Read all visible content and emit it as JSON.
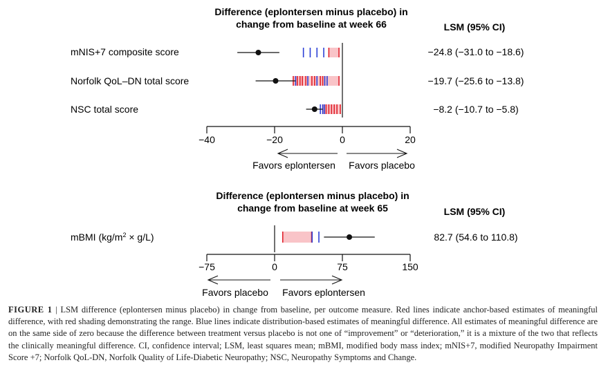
{
  "chart_data": [
    {
      "type": "forest",
      "title_line1": "Difference (eplontersen minus placebo) in",
      "title_line2": "change from baseline at week 66",
      "ci_header": "LSM (95% CI)",
      "xlim": [
        -40,
        20
      ],
      "ticks": [
        "−40",
        "−20",
        "0",
        "20"
      ],
      "tick_values": [
        -40,
        -20,
        0,
        20
      ],
      "direction_labels": {
        "left": "Favors eplontersen",
        "right": "Favors placebo"
      },
      "rows": [
        {
          "label": "mNIS+7 composite score",
          "lsm": -24.8,
          "ci_low": -31.0,
          "ci_high": -18.6,
          "ci_text": "−24.8 (−31.0 to −18.6)",
          "red_range": [
            -4,
            -1
          ],
          "red_lines": [
            -4,
            -1
          ],
          "blue_lines": [
            -11.5,
            -9.5,
            -7.5,
            -5.5
          ]
        },
        {
          "label": "Norfolk QoL–DN total score",
          "lsm": -19.7,
          "ci_low": -25.6,
          "ci_high": -13.8,
          "ci_text": "−19.7 (−25.6 to −13.8)",
          "red_range": [
            -14.5,
            -1
          ],
          "red_lines": [
            -14.5,
            -13.3,
            -12.5,
            -11.8,
            -10.8,
            -9.0,
            -8.2,
            -6.5,
            -5.8,
            -1
          ],
          "blue_lines": [
            -13.8,
            -10.2,
            -7.5,
            -5.2,
            -4.5
          ]
        },
        {
          "label": "NSC total score",
          "lsm": -8.2,
          "ci_low": -10.7,
          "ci_high": -5.8,
          "ci_text": "−8.2 (−10.7 to −5.8)",
          "red_range": [
            -5.8,
            -0.5
          ],
          "red_lines": [
            -5.8,
            -4.8,
            -4.0,
            -3.2,
            -2.4,
            -1.6,
            -0.6
          ],
          "blue_lines": [
            -6.5,
            -5.8,
            -5.3
          ]
        }
      ]
    },
    {
      "type": "forest",
      "title_line1": "Difference (eplontersen minus placebo) in",
      "title_line2": "change from baseline at week 65",
      "ci_header": "LSM (95% CI)",
      "xlim": [
        -75,
        150
      ],
      "ticks": [
        "−75",
        "0",
        "75",
        "150"
      ],
      "tick_values": [
        -75,
        0,
        75,
        150
      ],
      "direction_labels": {
        "left": "Favors placebo",
        "right": "Favors eplontersen"
      },
      "rows": [
        {
          "label_base": "mBMI (kg/m",
          "label_sup": "2",
          "label_end": " × g/L)",
          "lsm": 82.7,
          "ci_low": 54.6,
          "ci_high": 110.8,
          "ci_text": "82.7 (54.6 to 110.8)",
          "red_range": [
            9,
            41
          ],
          "red_lines": [
            9,
            41
          ],
          "blue_lines": [
            41.5,
            49
          ]
        }
      ]
    }
  ],
  "caption": {
    "label": "FIGURE 1",
    "separator": "|",
    "text": "LSM difference (eplontersen minus placebo) in change from baseline, per outcome measure. Red lines indicate anchor-based estimates of meaningful difference, with red shading demonstrating the range. Blue lines indicate distribution-based estimates of meaningful difference. All estimates of meaningful difference are on the same side of zero because the difference between treatment versus placebo is not one of “improvement” or “deterioration,” it is a mixture of the two that reflects the clinically meaningful difference. CI, confidence interval; LSM, least squares mean; mBMI, modified body mass index; mNIS+7, modified Neuropathy Impairment Score +7; Norfolk QoL-DN, Norfolk Quality of Life-Diabetic Neuropathy; NSC, Neuropathy Symptoms and Change."
  },
  "colors": {
    "red": "#e0202a",
    "shade": "#f9c4c8",
    "blue": "#2b3fd6",
    "ink": "#111111"
  }
}
